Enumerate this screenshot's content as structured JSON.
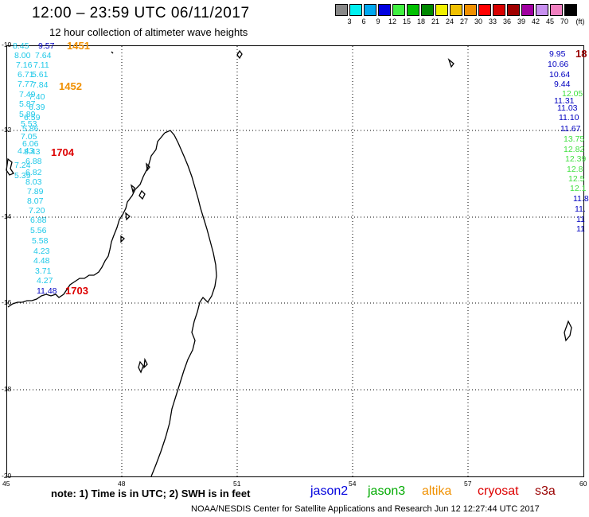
{
  "header": {
    "title": "12:00 – 23:59 UTC 06/11/2017",
    "subtitle": "12 hour collection of altimeter wave heights"
  },
  "legend": {
    "colors": [
      "#888888",
      "#00f0f0",
      "#00a8f0",
      "#0000e0",
      "#40f040",
      "#00c000",
      "#008800",
      "#f0f000",
      "#f0c000",
      "#f09000",
      "#ff0000",
      "#d80000",
      "#a00000",
      "#a000a0",
      "#c890f0",
      "#f080c0",
      "#000000"
    ],
    "labels": [
      "3",
      "6",
      "9",
      "12",
      "15",
      "18",
      "21",
      "24",
      "27",
      "30",
      "33",
      "36",
      "39",
      "42",
      "45",
      "70"
    ],
    "unit": "(ft)"
  },
  "axes": {
    "y_ticks": [
      "-10",
      "-12",
      "-14",
      "-16",
      "-18",
      "-20"
    ],
    "x_ticks": [
      "45",
      "48",
      "51",
      "54",
      "57",
      "60"
    ]
  },
  "passes": [
    {
      "label": "1451",
      "color": "#f09000"
    },
    {
      "label": "1452",
      "color": "#f09000"
    },
    {
      "label": "1704",
      "color": "#dd0000"
    },
    {
      "label": "1703",
      "color": "#dd0000"
    },
    {
      "label": "18",
      "color": "#990000"
    }
  ],
  "left_track": [
    {
      "v": "8.45",
      "c": "#1ec8e8"
    },
    {
      "v": "9.57",
      "c": "#0000c0"
    },
    {
      "v": "8.00",
      "c": "#1ec8e8"
    },
    {
      "v": "7.64",
      "c": "#1ec8e8"
    },
    {
      "v": "7.16",
      "c": "#1ec8e8"
    },
    {
      "v": "7.11",
      "c": "#1ec8e8"
    },
    {
      "v": "6.71",
      "c": "#1ec8e8"
    },
    {
      "v": "5.61",
      "c": "#1ec8e8"
    },
    {
      "v": "7.77",
      "c": "#1ec8e8"
    },
    {
      "v": "7.84",
      "c": "#1ec8e8"
    },
    {
      "v": "7.49",
      "c": "#1ec8e8"
    },
    {
      "v": "7.40",
      "c": "#1ec8e8"
    },
    {
      "v": "5.87",
      "c": "#1ec8e8"
    },
    {
      "v": "6.39",
      "c": "#1ec8e8"
    },
    {
      "v": "5.89",
      "c": "#1ec8e8"
    },
    {
      "v": "6.59",
      "c": "#1ec8e8"
    },
    {
      "v": "5.53",
      "c": "#1ec8e8"
    },
    {
      "v": "5.86",
      "c": "#1ec8e8"
    },
    {
      "v": "7.05",
      "c": "#1ec8e8"
    },
    {
      "v": "6.06",
      "c": "#1ec8e8"
    },
    {
      "v": "4.43",
      "c": "#1ec8e8"
    },
    {
      "v": "8.43",
      "c": "#1ec8e8"
    },
    {
      "v": "6.88",
      "c": "#1ec8e8"
    },
    {
      "v": "7.24",
      "c": "#1ec8e8"
    },
    {
      "v": "6.82",
      "c": "#1ec8e8"
    },
    {
      "v": "5.39",
      "c": "#1ec8e8"
    },
    {
      "v": "8.03",
      "c": "#1ec8e8"
    },
    {
      "v": "7.89",
      "c": "#1ec8e8"
    },
    {
      "v": "8.07",
      "c": "#1ec8e8"
    },
    {
      "v": "7.20",
      "c": "#1ec8e8"
    },
    {
      "v": "6.88",
      "c": "#1ec8e8"
    },
    {
      "v": "5.56",
      "c": "#1ec8e8"
    },
    {
      "v": "5.58",
      "c": "#1ec8e8"
    },
    {
      "v": "4.23",
      "c": "#1ec8e8"
    },
    {
      "v": "4.48",
      "c": "#1ec8e8"
    },
    {
      "v": "3.71",
      "c": "#1ec8e8"
    },
    {
      "v": "4.27",
      "c": "#1ec8e8"
    },
    {
      "v": "11.48",
      "c": "#0000c0"
    }
  ],
  "right_track": [
    {
      "v": "9.95",
      "c": "#0000c0"
    },
    {
      "v": "10.66",
      "c": "#0000c0"
    },
    {
      "v": "10.64",
      "c": "#0000c0"
    },
    {
      "v": "9.44",
      "c": "#0000c0"
    },
    {
      "v": "12.05",
      "c": "#40e040"
    },
    {
      "v": "11.31",
      "c": "#0000c0"
    },
    {
      "v": "11.03",
      "c": "#0000c0"
    },
    {
      "v": "11.10",
      "c": "#0000c0"
    },
    {
      "v": "11.67",
      "c": "#0000c0"
    },
    {
      "v": "13.75",
      "c": "#40e040"
    },
    {
      "v": "12.82",
      "c": "#40e040"
    },
    {
      "v": "12.39",
      "c": "#40e040"
    },
    {
      "v": "12.8",
      "c": "#40e040"
    },
    {
      "v": "12.5",
      "c": "#40e040"
    },
    {
      "v": "12.1",
      "c": "#40e040"
    },
    {
      "v": "11.8",
      "c": "#0000c0"
    },
    {
      "v": "11.",
      "c": "#0000c0"
    },
    {
      "v": "11",
      "c": "#0000c0"
    },
    {
      "v": "11",
      "c": "#0000c0"
    }
  ],
  "footer": {
    "note": "note: 1) Time is in UTC; 2) SWH is in feet",
    "satellites": [
      {
        "name": "jason2",
        "color": "#0000dd"
      },
      {
        "name": "jason3",
        "color": "#00aa00"
      },
      {
        "name": "altika",
        "color": "#f09000"
      },
      {
        "name": "cryosat",
        "color": "#dd0000"
      },
      {
        "name": "s3a",
        "color": "#990000"
      }
    ],
    "credit": "NOAA/NESDIS Center for Satellite Applications and Research    Jun 12 12:27:44 UTC 2017"
  }
}
